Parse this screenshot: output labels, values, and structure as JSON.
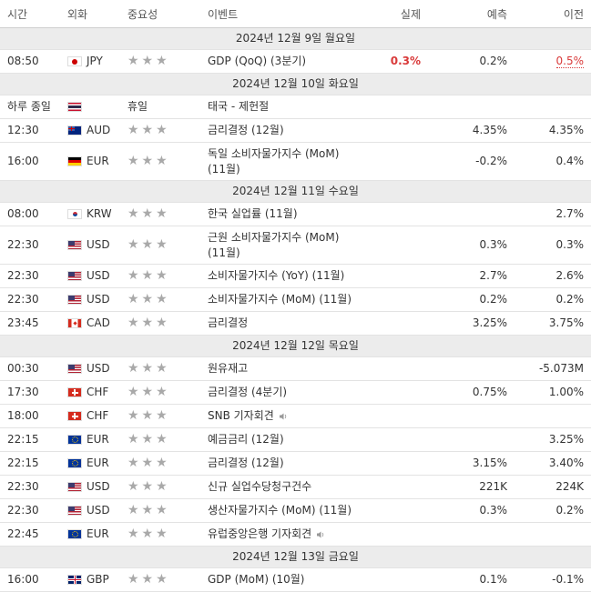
{
  "header": {
    "time": "시간",
    "currency": "외화",
    "importance": "중요성",
    "event": "이벤트",
    "actual": "실제",
    "forecast": "예측",
    "previous": "이전"
  },
  "rows": [
    {
      "type": "date",
      "label": "2024년 12월 9일 월요일"
    },
    {
      "time": "08:50",
      "flag": "jpy",
      "currency": "JPY",
      "stars": "★★★",
      "event": "GDP (QoQ) (3분기)",
      "actual": "0.3%",
      "actual_style": "red bold",
      "forecast": "0.2%",
      "previous": "0.5%",
      "previous_style": "red under"
    },
    {
      "type": "date",
      "label": "2024년 12월 10일 화요일"
    },
    {
      "time": "하루 종일",
      "flag": "thb",
      "currency": "",
      "stars": "휴일",
      "stars_text": true,
      "event": "태국 - 제헌절",
      "actual": "",
      "forecast": "",
      "previous": ""
    },
    {
      "time": "12:30",
      "flag": "aud",
      "currency": "AUD",
      "stars": "★★★",
      "event": "금리결정 (12월)",
      "actual": "",
      "forecast": "4.35%",
      "previous": "4.35%"
    },
    {
      "time": "16:00",
      "flag": "eur",
      "currency": "EUR",
      "stars": "★★★",
      "event": "독일 소비자물가지수 (MoM) (11월)",
      "tall": true,
      "actual": "",
      "forecast": "-0.2%",
      "previous": "0.4%"
    },
    {
      "type": "date",
      "label": "2024년 12월 11일 수요일"
    },
    {
      "time": "08:00",
      "flag": "krw",
      "currency": "KRW",
      "stars": "★★★",
      "event": "한국 실업률 (11월)",
      "actual": "",
      "forecast": "",
      "previous": "2.7%"
    },
    {
      "time": "22:30",
      "flag": "usd",
      "currency": "USD",
      "stars": "★★★",
      "event": "근원 소비자물가지수 (MoM) (11월)",
      "tall": true,
      "actual": "",
      "forecast": "0.3%",
      "previous": "0.3%"
    },
    {
      "time": "22:30",
      "flag": "usd",
      "currency": "USD",
      "stars": "★★★",
      "event": "소비자물가지수 (YoY) (11월)",
      "actual": "",
      "forecast": "2.7%",
      "previous": "2.6%"
    },
    {
      "time": "22:30",
      "flag": "usd",
      "currency": "USD",
      "stars": "★★★",
      "event": "소비자물가지수 (MoM) (11월)",
      "actual": "",
      "forecast": "0.2%",
      "previous": "0.2%"
    },
    {
      "time": "23:45",
      "flag": "cad",
      "currency": "CAD",
      "stars": "★★★",
      "event": "금리결정",
      "actual": "",
      "forecast": "3.25%",
      "previous": "3.75%"
    },
    {
      "type": "date",
      "label": "2024년 12월 12일 목요일"
    },
    {
      "time": "00:30",
      "flag": "usd",
      "currency": "USD",
      "stars": "★★★",
      "event": "원유재고",
      "actual": "",
      "forecast": "",
      "previous": "-5.073M"
    },
    {
      "time": "17:30",
      "flag": "chf",
      "currency": "CHF",
      "stars": "★★★",
      "event": "금리결정 (4분기)",
      "actual": "",
      "forecast": "0.75%",
      "previous": "1.00%"
    },
    {
      "time": "18:00",
      "flag": "chf",
      "currency": "CHF",
      "stars": "★★★",
      "event": "SNB 기자회견",
      "speaker": true,
      "actual": "",
      "forecast": "",
      "previous": ""
    },
    {
      "time": "22:15",
      "flag": "eu",
      "currency": "EUR",
      "stars": "★★★",
      "event": "예금금리 (12월)",
      "actual": "",
      "forecast": "",
      "previous": "3.25%"
    },
    {
      "time": "22:15",
      "flag": "eu",
      "currency": "EUR",
      "stars": "★★★",
      "event": "금리결정 (12월)",
      "actual": "",
      "forecast": "3.15%",
      "previous": "3.40%"
    },
    {
      "time": "22:30",
      "flag": "usd",
      "currency": "USD",
      "stars": "★★★",
      "event": "신규 실업수당청구건수",
      "actual": "",
      "forecast": "221K",
      "previous": "224K"
    },
    {
      "time": "22:30",
      "flag": "usd",
      "currency": "USD",
      "stars": "★★★",
      "event": "생산자물가지수 (MoM) (11월)",
      "actual": "",
      "forecast": "0.3%",
      "previous": "0.2%"
    },
    {
      "time": "22:45",
      "flag": "eu",
      "currency": "EUR",
      "stars": "★★★",
      "event": "유럽중앙은행 기자회견",
      "speaker": true,
      "actual": "",
      "forecast": "",
      "previous": ""
    },
    {
      "type": "date",
      "label": "2024년 12월 13일 금요일"
    },
    {
      "time": "16:00",
      "flag": "gbp",
      "currency": "GBP",
      "stars": "★★★",
      "event": "GDP (MoM) (10월)",
      "actual": "",
      "forecast": "0.1%",
      "previous": "-0.1%"
    }
  ],
  "colors": {
    "accent_red": "#d93a3a",
    "date_row_bg": "#ececec",
    "star_gray": "#a9a9a9"
  }
}
